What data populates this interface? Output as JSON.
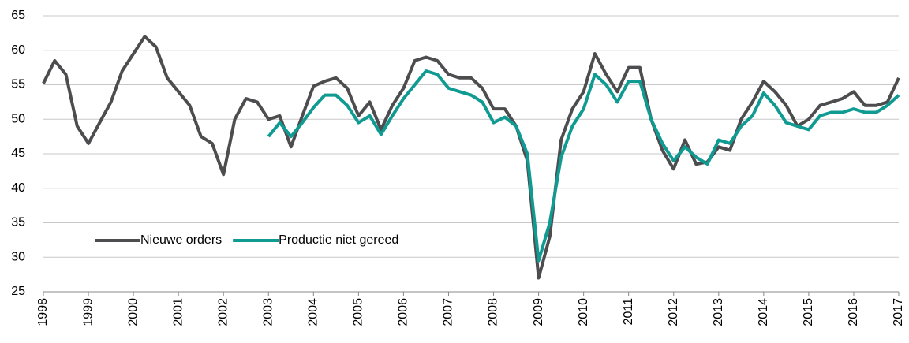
{
  "chart_data": {
    "type": "line",
    "x": [
      1998,
      1998.25,
      1998.5,
      1998.75,
      1999,
      1999.25,
      1999.5,
      1999.75,
      2000,
      2000.25,
      2000.5,
      2000.75,
      2001,
      2001.25,
      2001.5,
      2001.75,
      2002,
      2002.25,
      2002.5,
      2002.75,
      2003,
      2003.25,
      2003.5,
      2003.75,
      2004,
      2004.25,
      2004.5,
      2004.75,
      2005,
      2005.25,
      2005.5,
      2005.75,
      2006,
      2006.25,
      2006.5,
      2006.75,
      2007,
      2007.25,
      2007.5,
      2007.75,
      2008,
      2008.25,
      2008.5,
      2008.75,
      2009,
      2009.25,
      2009.5,
      2009.75,
      2010,
      2010.25,
      2010.5,
      2010.75,
      2011,
      2011.25,
      2011.5,
      2011.75,
      2012,
      2012.25,
      2012.5,
      2012.75,
      2013,
      2013.25,
      2013.5,
      2013.75,
      2014,
      2014.25,
      2014.5,
      2014.75,
      2015,
      2015.25,
      2015.5,
      2015.75,
      2016,
      2016.25,
      2016.5,
      2016.75,
      2017
    ],
    "series": [
      {
        "name": "Nieuwe orders",
        "color": "#4d4d4f",
        "values": [
          55.2,
          58.5,
          56.5,
          49,
          46.5,
          49.5,
          52.5,
          57,
          59.5,
          62,
          60.5,
          56,
          54,
          52,
          47.5,
          46.5,
          42,
          50,
          53,
          52.5,
          50,
          50.5,
          46,
          50.5,
          54.8,
          55.5,
          56,
          54.5,
          50.5,
          52.5,
          48.5,
          52,
          54.5,
          58.5,
          59,
          58.5,
          56.5,
          56,
          56,
          54.5,
          51.5,
          51.5,
          49,
          44,
          27,
          33,
          47,
          51.5,
          54,
          59.5,
          56.5,
          54,
          57.5,
          57.5,
          50,
          45.5,
          42.8,
          47,
          43.5,
          43.8,
          46,
          45.5,
          50,
          52.5,
          55.5,
          54,
          52,
          49,
          50,
          52,
          52.5,
          53,
          54,
          52,
          52,
          52.5,
          56
        ]
      },
      {
        "name": "Productie niet gereed",
        "color": "#0f9a92",
        "values": [
          null,
          null,
          null,
          null,
          null,
          null,
          null,
          null,
          null,
          null,
          null,
          null,
          null,
          null,
          null,
          null,
          null,
          null,
          null,
          null,
          47.5,
          49.5,
          47.5,
          49.5,
          51.7,
          53.5,
          53.5,
          52,
          49.5,
          50.5,
          47.8,
          50.5,
          53,
          55,
          57,
          56.5,
          54.5,
          54,
          53.5,
          52.5,
          49.5,
          50.3,
          49,
          45,
          29.5,
          35,
          44.5,
          49,
          51.5,
          56.5,
          55,
          52.5,
          55.5,
          55.5,
          50,
          46.5,
          44,
          46,
          44.5,
          43.5,
          47,
          46.5,
          49,
          50.5,
          53.8,
          52,
          49.5,
          49,
          48.5,
          50.5,
          51,
          51,
          51.5,
          51,
          51,
          52,
          53.5
        ]
      }
    ],
    "xlim": [
      1998,
      2017
    ],
    "xticks": [
      1998,
      1999,
      2000,
      2001,
      2002,
      2003,
      2004,
      2005,
      2006,
      2007,
      2008,
      2009,
      2010,
      2011,
      2012,
      2013,
      2014,
      2015,
      2016,
      2017
    ],
    "ylim": [
      25,
      65
    ],
    "yticks": [
      25,
      30,
      35,
      40,
      45,
      50,
      55,
      60,
      65
    ],
    "grid": true,
    "legend": "lower left"
  }
}
